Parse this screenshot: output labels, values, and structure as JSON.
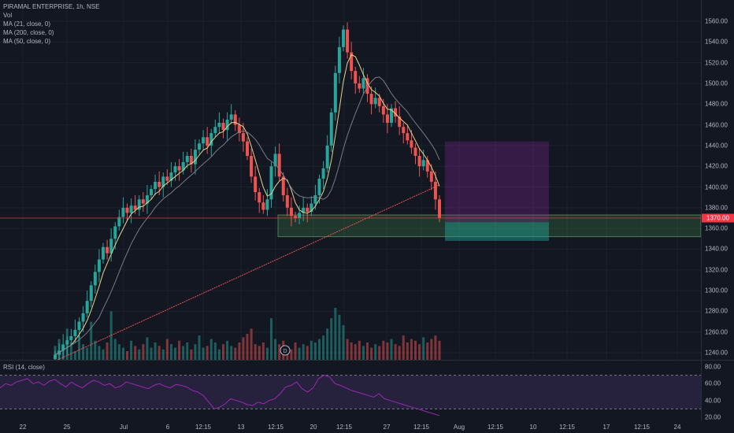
{
  "legend": {
    "symbol": "PIRAMAL ENTERPRISE, 1h, NSE",
    "vol": "Vol",
    "ma21": "MA (21, close, 0)",
    "ma200": "MA (200, close, 0)",
    "ma50": "MA (50, close, 0)"
  },
  "rsi_legend": "RSI (14, close)",
  "price_axis": [
    "1560.00",
    "1540.00",
    "1520.00",
    "1500.00",
    "1480.00",
    "1460.00",
    "1440.00",
    "1420.00",
    "1400.00",
    "1380.00",
    "1360.00",
    "1340.00",
    "1320.00",
    "1300.00",
    "1280.00",
    "1260.00",
    "1240.00"
  ],
  "rsi_axis": [
    "80.00",
    "60.00",
    "40.00",
    "20.00"
  ],
  "time_axis": [
    "22",
    "25",
    "Jul",
    "6",
    "12:15",
    "13",
    "12:15",
    "20",
    "12:15",
    "27",
    "12:15",
    "Aug",
    "12:15",
    "10",
    "12:15",
    "17",
    "12:15",
    "24"
  ],
  "last_price_label": "1370.00",
  "dividend_marker": "D",
  "colors": {
    "background": "#131722",
    "up": "#26a69a",
    "down": "#ef5350",
    "ma21": "#e8d28b",
    "ma50": "#787b86",
    "ma200": "#ef5350",
    "rsi": "#9c27b0",
    "price_line": "#f23645"
  },
  "chart_data": {
    "type": "candlestick",
    "title": "PIRAMAL ENTERPRISE, 1h, NSE",
    "ylim": [
      1230,
      1575
    ],
    "rsi_ylim": [
      20,
      85
    ],
    "series": [
      {
        "name": "MA (21, close, 0)",
        "values": []
      },
      {
        "name": "MA (200, close, 0)",
        "values": []
      },
      {
        "name": "MA (50, close, 0)",
        "values": []
      }
    ],
    "closes": [
      1238,
      1242,
      1248,
      1252,
      1256,
      1262,
      1270,
      1278,
      1290,
      1305,
      1318,
      1330,
      1342,
      1336,
      1350,
      1362,
      1371,
      1380,
      1375,
      1382,
      1378,
      1388,
      1384,
      1392,
      1398,
      1405,
      1400,
      1410,
      1406,
      1414,
      1420,
      1416,
      1424,
      1430,
      1422,
      1436,
      1442,
      1448,
      1440,
      1452,
      1458,
      1462,
      1455,
      1465,
      1470,
      1460,
      1452,
      1444,
      1430,
      1410,
      1395,
      1385,
      1378,
      1388,
      1420,
      1432,
      1410,
      1392,
      1380,
      1372,
      1370,
      1375,
      1380,
      1376,
      1384,
      1392,
      1408,
      1418,
      1440,
      1472,
      1510,
      1535,
      1552,
      1530,
      1512,
      1500,
      1495,
      1505,
      1490,
      1480,
      1486,
      1478,
      1470,
      1462,
      1476,
      1468,
      1458,
      1452,
      1445,
      1438,
      1430,
      1420,
      1426,
      1415,
      1405,
      1388,
      1370
    ],
    "volumes": [
      8,
      12,
      6,
      18,
      10,
      5,
      14,
      9,
      7,
      22,
      11,
      8,
      6,
      10,
      28,
      12,
      9,
      7,
      5,
      11,
      8,
      6,
      9,
      13,
      7,
      10,
      8,
      6,
      12,
      9,
      7,
      11,
      8,
      10,
      6,
      9,
      14,
      7,
      8,
      12,
      10,
      6,
      9,
      11,
      8,
      7,
      10,
      13,
      15,
      18,
      9,
      8,
      10,
      7,
      24,
      12,
      9,
      11,
      8,
      6,
      10,
      7,
      9,
      8,
      11,
      10,
      12,
      14,
      18,
      24,
      30,
      26,
      20,
      12,
      10,
      9,
      11,
      8,
      10,
      7,
      9,
      8,
      11,
      10,
      12,
      9,
      8,
      14,
      10,
      12,
      11,
      9,
      13,
      10,
      12,
      14,
      11
    ],
    "rsi": [
      55,
      60,
      58,
      62,
      64,
      66,
      60,
      62,
      58,
      63,
      65,
      60,
      56,
      62,
      58,
      55,
      60,
      64,
      62,
      58,
      60,
      55,
      57,
      62,
      60,
      58,
      56,
      54,
      58,
      60,
      57,
      55,
      59,
      58,
      56,
      52,
      50,
      46,
      38,
      30,
      32,
      36,
      42,
      40,
      38,
      35,
      34,
      38,
      36,
      40,
      42,
      48,
      56,
      58,
      62,
      54,
      50,
      55,
      66,
      70,
      68,
      60,
      58,
      55,
      52,
      50,
      48,
      46,
      44,
      48,
      42,
      40,
      38,
      36,
      34,
      32,
      30,
      28,
      26,
      24,
      22
    ],
    "zones": [
      {
        "name": "demand-zone",
        "from": 1352,
        "to": 1373
      },
      {
        "name": "short-target-zone",
        "from": 1348,
        "to": 1366
      },
      {
        "name": "short-risk-zone",
        "from": 1366,
        "to": 1444
      }
    ],
    "last_price": 1370,
    "grid": true
  }
}
